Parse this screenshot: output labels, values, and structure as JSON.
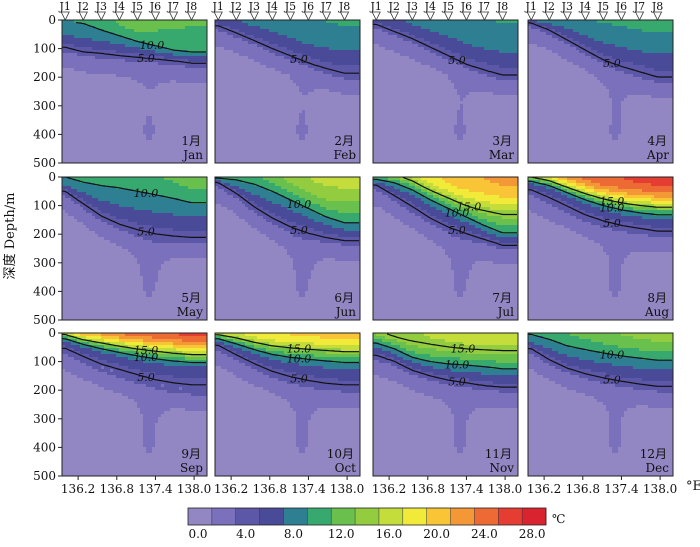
{
  "chart_data": {
    "type": "heatmap",
    "ylabel": "深度 Depth/m",
    "x_unit": "°E",
    "y_ticks": [
      0,
      100,
      200,
      300,
      400,
      500
    ],
    "x_ticks": [
      "136.2",
      "136.8",
      "137.4",
      "138.0"
    ],
    "x_tick_values": [
      136.2,
      136.8,
      137.4,
      138.0
    ],
    "xlim": [
      135.95,
      138.2
    ],
    "ylim": [
      0,
      500
    ],
    "stations": [
      "J1",
      "J2",
      "J3",
      "J4",
      "J5",
      "J6",
      "J7",
      "J8"
    ],
    "station_lon": [
      136.0,
      136.28,
      136.56,
      136.84,
      137.12,
      137.4,
      137.68,
      137.96
    ],
    "legend": {
      "values": [
        0,
        2,
        4,
        6,
        8,
        10,
        12,
        14,
        16,
        18,
        20,
        22,
        24,
        26,
        28,
        30
      ],
      "labels": [
        "0.0",
        "4.0",
        "8.0",
        "12.0",
        "16.0",
        "20.0",
        "24.0",
        "28.0"
      ],
      "label_values": [
        0,
        4,
        8,
        12,
        16,
        20,
        24,
        28
      ],
      "unit": "℃",
      "colors": [
        "#9286c3",
        "#7a70bb",
        "#5d57a8",
        "#494a98",
        "#2f7f93",
        "#38a96e",
        "#6ac04c",
        "#93cc3e",
        "#c5dd3b",
        "#f2ea39",
        "#f9c436",
        "#f49736",
        "#ee6a35",
        "#e63d33",
        "#d92430"
      ]
    },
    "panels": [
      {
        "month_cn": "1月",
        "month_en": "Jan",
        "surface": [
          9.6,
          10.4,
          11.6,
          12.4,
          12.8,
          12.8,
          12.6,
          12.2
        ],
        "d10": [
          4,
          12,
          35,
          55,
          75,
          90,
          105,
          112
        ],
        "d5": [
          95,
          112,
          118,
          125,
          130,
          136,
          142,
          150
        ],
        "contours": [
          {
            "value": 10.0,
            "label": "10.0"
          },
          {
            "value": 5.0,
            "label": "5.0"
          }
        ]
      },
      {
        "month_cn": "2月",
        "month_en": "Feb",
        "surface": [
          7.4,
          7.9,
          8.4,
          8.8,
          9.4,
          10.0,
          10.8,
          11.4
        ],
        "d10": [
          0,
          0,
          0,
          0,
          0,
          0,
          5,
          22
        ],
        "d5": [
          20,
          45,
          72,
          100,
          125,
          150,
          172,
          190
        ],
        "contours": [
          {
            "value": 5.0,
            "label": "5.0"
          }
        ]
      },
      {
        "month_cn": "3月",
        "month_en": "Mar",
        "surface": [
          7.0,
          7.6,
          8.2,
          8.8,
          9.2,
          9.6,
          10.2,
          10.8
        ],
        "d10": [
          0,
          0,
          0,
          0,
          0,
          0,
          0,
          8
        ],
        "d5": [
          15,
          40,
          65,
          95,
          125,
          155,
          175,
          195
        ],
        "contours": [
          {
            "value": 5.0,
            "label": "5.0"
          }
        ]
      },
      {
        "month_cn": "4月",
        "month_en": "Apr",
        "surface": [
          8.2,
          8.6,
          9.0,
          9.6,
          10.4,
          11.2,
          11.8,
          12.4
        ],
        "d10": [
          0,
          0,
          0,
          0,
          8,
          22,
          35,
          45
        ],
        "d5": [
          10,
          35,
          70,
          105,
          140,
          165,
          185,
          205
        ],
        "contours": [
          {
            "value": 5.0,
            "label": "5.0"
          }
        ]
      },
      {
        "month_cn": "5月",
        "month_en": "May",
        "surface": [
          11.0,
          11.6,
          12.2,
          12.6,
          13.0,
          13.2,
          13.4,
          13.4
        ],
        "d10": [
          0,
          18,
          30,
          38,
          50,
          62,
          75,
          90
        ],
        "d5": [
          50,
          95,
          140,
          170,
          190,
          205,
          212,
          215
        ],
        "contours": [
          {
            "value": 10.0,
            "label": "10.0"
          },
          {
            "value": 5.0,
            "label": "5.0"
          }
        ]
      },
      {
        "month_cn": "6月",
        "month_en": "Jun",
        "surface": [
          13.2,
          13.8,
          14.4,
          15.0,
          15.6,
          16.0,
          16.4,
          16.6
        ],
        "d10": [
          4,
          10,
          25,
          50,
          80,
          110,
          140,
          160
        ],
        "d5": [
          20,
          60,
          110,
          150,
          180,
          200,
          212,
          222
        ],
        "contours": [
          {
            "value": 10.0,
            "label": "10.0"
          },
          {
            "value": 5.0,
            "label": "5.0"
          }
        ]
      },
      {
        "month_cn": "7月",
        "month_en": "Jul",
        "surface": [
          16.5,
          17.5,
          18.5,
          19.5,
          20.5,
          21.5,
          22.0,
          22.5
        ],
        "d10": [
          8,
          20,
          45,
          80,
          110,
          140,
          170,
          195
        ],
        "d5": [
          30,
          70,
          110,
          150,
          180,
          200,
          218,
          238
        ],
        "contours": [
          {
            "value": 15.0,
            "label": "15.0"
          },
          {
            "value": 10.0,
            "label": "10.0"
          },
          {
            "value": 5.0,
            "label": "5.0"
          }
        ]
      },
      {
        "month_cn": "8月",
        "month_en": "Aug",
        "surface": [
          21.0,
          22.5,
          23.5,
          24.5,
          25.5,
          26.0,
          26.5,
          27.0
        ],
        "d10": [
          15,
          30,
          55,
          80,
          100,
          115,
          125,
          132
        ],
        "d5": [
          50,
          80,
          110,
          140,
          160,
          175,
          185,
          195
        ],
        "contours": [
          {
            "value": 15.0,
            "label": "15.0"
          },
          {
            "value": 10.0,
            "label": "10.0"
          },
          {
            "value": 5.0,
            "label": "5.0"
          }
        ]
      },
      {
        "month_cn": "9月",
        "month_en": "Sep",
        "surface": [
          22.0,
          23.5,
          24.5,
          25.5,
          26.0,
          26.5,
          27.0,
          27.5
        ],
        "d10": [
          20,
          40,
          55,
          68,
          80,
          90,
          98,
          103
        ],
        "d5": [
          60,
          90,
          120,
          140,
          160,
          180,
          192,
          200
        ],
        "contours": [
          {
            "value": 15.0,
            "label": "15.0"
          },
          {
            "value": 10.0,
            "label": "10.0"
          },
          {
            "value": 5.0,
            "label": "5.0"
          }
        ]
      },
      {
        "month_cn": "10月",
        "month_en": "Oct",
        "surface": [
          17.5,
          18.5,
          19.5,
          20.0,
          20.5,
          21.0,
          21.0,
          21.0
        ],
        "d10": [
          20,
          38,
          58,
          75,
          85,
          92,
          98,
          103
        ],
        "d5": [
          45,
          80,
          112,
          140,
          160,
          175,
          185,
          190
        ],
        "contours": [
          {
            "value": 15.0,
            "label": "15.0"
          },
          {
            "value": 10.0,
            "label": "10.0"
          },
          {
            "value": 5.0,
            "label": "5.0"
          }
        ]
      },
      {
        "month_cn": "11月",
        "month_en": "Nov",
        "surface": [
          15.0,
          15.4,
          15.8,
          16.2,
          16.6,
          17.0,
          17.0,
          17.0
        ],
        "d10": [
          35,
          55,
          85,
          100,
          108,
          112,
          118,
          125
        ],
        "d5": [
          80,
          100,
          130,
          150,
          165,
          175,
          185,
          190
        ],
        "contours": [
          {
            "value": 15.0,
            "label": "15.0"
          },
          {
            "value": 10.0,
            "label": "10.0"
          },
          {
            "value": 5.0,
            "label": "5.0"
          }
        ]
      },
      {
        "month_cn": "12月",
        "month_en": "Dec",
        "surface": [
          11.0,
          11.8,
          12.6,
          13.2,
          13.8,
          14.4,
          14.8,
          15.0
        ],
        "d10": [
          5,
          22,
          45,
          58,
          70,
          80,
          88,
          95
        ],
        "d5": [
          55,
          95,
          125,
          145,
          160,
          172,
          182,
          190
        ],
        "contours": [
          {
            "value": 10.0,
            "label": "10.0"
          },
          {
            "value": 5.0,
            "label": "5.0"
          }
        ]
      }
    ]
  }
}
